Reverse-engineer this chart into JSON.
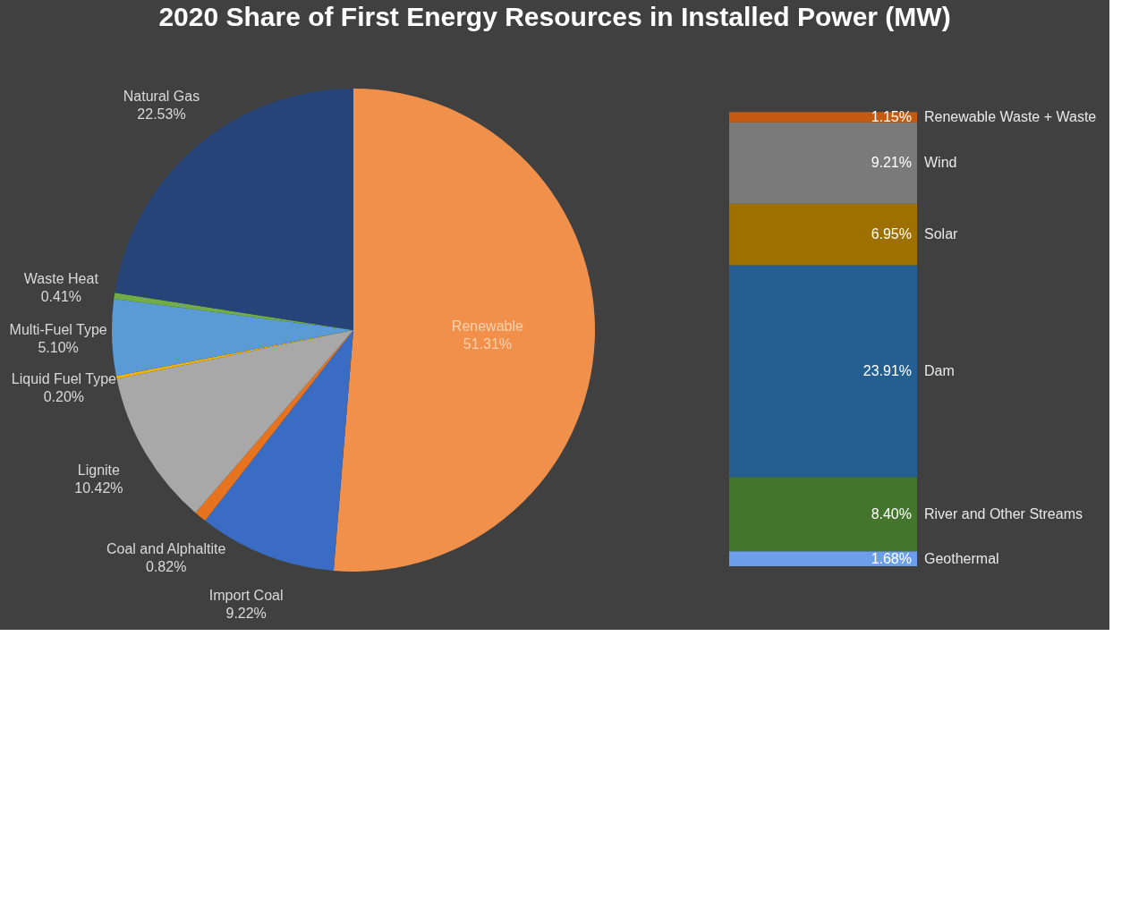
{
  "chart_data": [
    {
      "type": "pie",
      "title": "2020 Share of First Energy Resources in Installed Power (MW)",
      "categories": [
        "Renewable",
        "Import Coal",
        "Coal and Alphaltite",
        "Lignite",
        "Liquid Fuel Type",
        "Multi-Fuel Type",
        "Waste Heat",
        "Natural Gas"
      ],
      "values": [
        51.31,
        9.22,
        0.82,
        10.42,
        0.2,
        5.1,
        0.41,
        22.53
      ],
      "value_labels": [
        "51.31%",
        "9.22%",
        "0.82%",
        "10.42%",
        "0.20%",
        "5.10%",
        "0.41%",
        "22.53%"
      ],
      "colors": [
        "#f0904a",
        "#3a6cc4",
        "#e8731e",
        "#a8a8a8",
        "#f0b400",
        "#5b9bd5",
        "#70ad47",
        "#264478"
      ]
    },
    {
      "type": "bar",
      "stacked": true,
      "categories": [
        null
      ],
      "series": [
        {
          "name": "Geothermal",
          "color": "#6d9eeb",
          "values": [
            1.68
          ],
          "value_labels": [
            "1.68%"
          ]
        },
        {
          "name": "River and Other Streams",
          "color": "#44752c",
          "values": [
            8.4
          ],
          "value_labels": [
            "8.40%"
          ]
        },
        {
          "name": "Dam",
          "color": "#255e91",
          "values": [
            23.91
          ],
          "value_labels": [
            "23.91%"
          ]
        },
        {
          "name": "Solar",
          "color": "#9e7000",
          "values": [
            6.95
          ],
          "value_labels": [
            "6.95%"
          ]
        },
        {
          "name": "Wind",
          "color": "#7a7a7a",
          "values": [
            9.21
          ],
          "value_labels": [
            "9.21%"
          ]
        },
        {
          "name": "Renewable Waste + Waste",
          "color": "#c55a11",
          "values": [
            1.15
          ],
          "value_labels": [
            "1.15%"
          ]
        }
      ]
    }
  ]
}
